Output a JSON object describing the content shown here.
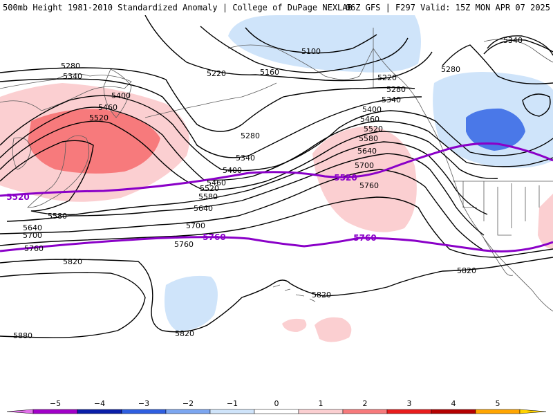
{
  "header": {
    "title_left": "500mb Height 1981-2010 Standardized Anomaly | College of DuPage NEXLAB",
    "title_right": "06Z GFS | F297 Valid: 15Z MON APR 07 2025"
  },
  "colors": {
    "contour": "#000000",
    "reference_contour": "#8a00c8",
    "coast": "#5a5a5a",
    "anomaly_pos_1": "#fbcfd1",
    "anomaly_pos_2": "#f77a7c",
    "anomaly_neg_1": "#cfe4fa",
    "anomaly_neg_2": "#4a78e8",
    "anomaly_neg_3": "#3c6ee6"
  },
  "contour_labels": {
    "c5100": "5100",
    "c5160": "5160",
    "c5220": "5220",
    "c5280": "5280",
    "c5340": "5340",
    "c5400": "5400",
    "c5460": "5460",
    "c5520": "5520",
    "c5580": "5580",
    "c5640": "5640",
    "c5700": "5700",
    "c5760": "5760",
    "c5820": "5820",
    "c5880": "5880"
  },
  "colorbar": {
    "ticks": [
      "−5",
      "−4",
      "−3",
      "−2",
      "−1",
      "0",
      "1",
      "2",
      "3",
      "4",
      "5"
    ],
    "colors": [
      "#a100c8",
      "#0a1ea8",
      "#2e5ee0",
      "#7ca6f0",
      "#cfe4fa",
      "#ffffff",
      "#fbcfd1",
      "#f77a7c",
      "#e81c1c",
      "#b40000",
      "#ffa500"
    ],
    "low_end_color": "#e070e8",
    "high_end_color": "#ffd200"
  }
}
